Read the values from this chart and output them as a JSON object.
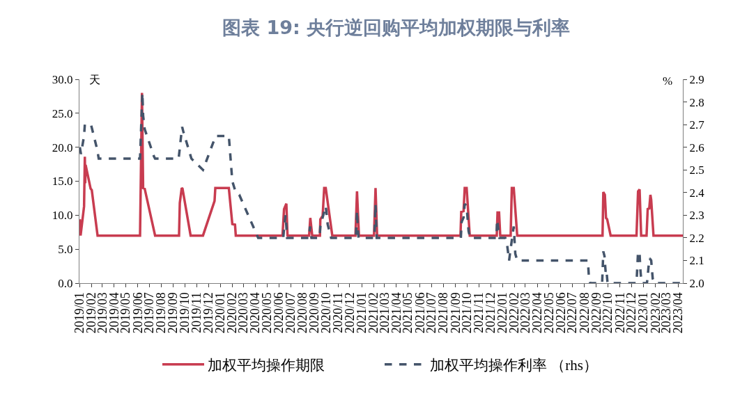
{
  "chart_data": {
    "type": "line",
    "title": "图表 19: 央行逆回购平均加权期限与利率",
    "ylabel": "天",
    "y2label": "%",
    "legend": "bottom",
    "xlim": [
      "2019-01-01",
      "2023-04-13"
    ],
    "xticks": [
      {
        "value": "2019-01",
        "label": "2019/01"
      },
      {
        "value": "2019-02",
        "label": "2019/02"
      },
      {
        "value": "2019-03",
        "label": "2019/03"
      },
      {
        "value": "2019-04",
        "label": "2019/04"
      },
      {
        "value": "2019-05",
        "label": "2019/05"
      },
      {
        "value": "2019-06",
        "label": "2019/06"
      },
      {
        "value": "2019-07",
        "label": "2019/07"
      },
      {
        "value": "2019-08",
        "label": "2019/08"
      },
      {
        "value": "2019-09",
        "label": "2019/09"
      },
      {
        "value": "2019-10",
        "label": "2019/10"
      },
      {
        "value": "2019-11",
        "label": "2019/11"
      },
      {
        "value": "2019-12",
        "label": "2019/12"
      },
      {
        "value": "2020-01",
        "label": "2020/01"
      },
      {
        "value": "2020-02",
        "label": "2020/02"
      },
      {
        "value": "2020-03",
        "label": "2020/03"
      },
      {
        "value": "2020-04",
        "label": "2020/04"
      },
      {
        "value": "2020-05",
        "label": "2020/05"
      },
      {
        "value": "2020-06",
        "label": "2020/06"
      },
      {
        "value": "2020-07",
        "label": "2020/07"
      },
      {
        "value": "2020-08",
        "label": "2020/08"
      },
      {
        "value": "2020-09",
        "label": "2020/09"
      },
      {
        "value": "2020-10",
        "label": "2020/10"
      },
      {
        "value": "2020-11",
        "label": "2020/11"
      },
      {
        "value": "2020-12",
        "label": "2020/12"
      },
      {
        "value": "2021-01",
        "label": "2021/01"
      },
      {
        "value": "2021-02",
        "label": "2021/02"
      },
      {
        "value": "2021-03",
        "label": "2021/03"
      },
      {
        "value": "2021-04",
        "label": "2021/04"
      },
      {
        "value": "2021-05",
        "label": "2021/05"
      },
      {
        "value": "2021-06",
        "label": "2021/06"
      },
      {
        "value": "2021-07",
        "label": "2021/07"
      },
      {
        "value": "2021-08",
        "label": "2021/08"
      },
      {
        "value": "2021-09",
        "label": "2021/09"
      },
      {
        "value": "2021-10",
        "label": "2021/10"
      },
      {
        "value": "2021-11",
        "label": "2021/11"
      },
      {
        "value": "2021-12",
        "label": "2021/12"
      },
      {
        "value": "2022-01",
        "label": "2022/01"
      },
      {
        "value": "2022-02",
        "label": "2022/02"
      },
      {
        "value": "2022-03",
        "label": "2022/03"
      },
      {
        "value": "2022-04",
        "label": "2022/04"
      },
      {
        "value": "2022-05",
        "label": "2022/05"
      },
      {
        "value": "2022-06",
        "label": "2022/06"
      },
      {
        "value": "2022-07",
        "label": "2022/07"
      },
      {
        "value": "2022-08",
        "label": "2022/08"
      },
      {
        "value": "2022-09",
        "label": "2022/09"
      },
      {
        "value": "2022-10",
        "label": "2022/10"
      },
      {
        "value": "2022-11",
        "label": "2022/11"
      },
      {
        "value": "2022-12",
        "label": "2022/12"
      },
      {
        "value": "2023-01",
        "label": "2023/01"
      },
      {
        "value": "2023-02",
        "label": "2023/02"
      },
      {
        "value": "2023-03",
        "label": "2023/03"
      },
      {
        "value": "2023-04",
        "label": "2023/04"
      }
    ],
    "ylim": [
      0,
      30
    ],
    "yticks": [
      {
        "value": 0,
        "label": "0.0"
      },
      {
        "value": 5,
        "label": "5.0"
      },
      {
        "value": 10,
        "label": "10.0"
      },
      {
        "value": 15,
        "label": "15.0"
      },
      {
        "value": 20,
        "label": "20.0"
      },
      {
        "value": 25,
        "label": "25.0"
      },
      {
        "value": 30,
        "label": "30.0"
      }
    ],
    "y2lim": [
      2.0,
      2.9
    ],
    "y2ticks": [
      {
        "value": 2,
        "label": "2.0"
      },
      2.1,
      2.2,
      2.3,
      2.4,
      2.5,
      2.6,
      2.7,
      2.8,
      2.9
    ],
    "series": [
      {
        "name": "加权平均操作期限",
        "color": "#c83c50",
        "line_style": "solid",
        "x": [
          "2019-01-02",
          "2019-01-04",
          "2019-01-13",
          "2019-01-15",
          "2019-01-16",
          "2019-01-17",
          "2019-01-30",
          "2019-02-02",
          "2019-02-17",
          "2019-06-07",
          "2019-06-12",
          "2019-06-15",
          "2019-06-19",
          "2019-07-16",
          "2019-09-16",
          "2019-09-18",
          "2019-09-23",
          "2019-09-25",
          "2019-10-16",
          "2019-11-17",
          "2019-12-17",
          "2019-12-19",
          "2020-01-23",
          "2020-02-01",
          "2020-02-08",
          "2020-02-10",
          "2020-06-10",
          "2020-06-14",
          "2020-06-20",
          "2020-06-23",
          "2020-08-18",
          "2020-08-21",
          "2020-08-26",
          "2020-09-15",
          "2020-09-16",
          "2020-09-22",
          "2020-09-26",
          "2020-09-30",
          "2020-10-17",
          "2020-12-16",
          "2020-12-20",
          "2020-12-25",
          "2021-02-02",
          "2021-02-06",
          "2021-02-10",
          "2021-09-14",
          "2021-09-16",
          "2021-09-22",
          "2021-09-25",
          "2021-09-30",
          "2021-10-08",
          "2021-12-17",
          "2021-12-19",
          "2021-12-23",
          "2021-12-26",
          "2022-01-22",
          "2022-01-25",
          "2022-01-30",
          "2022-02-08",
          "2022-09-17",
          "2022-09-19",
          "2022-09-23",
          "2022-09-26",
          "2022-09-29",
          "2022-10-08",
          "2022-12-14",
          "2022-12-18",
          "2022-12-22",
          "2022-12-26",
          "2023-01-09",
          "2023-01-12",
          "2023-01-16",
          "2023-01-19",
          "2023-01-21",
          "2023-01-27",
          "2023-04-13"
        ],
        "values": [
          9.4,
          7.0,
          11.3,
          18.6,
          14.7,
          17.4,
          13.9,
          13.7,
          7.0,
          7.0,
          28.0,
          14.0,
          13.9,
          7.0,
          7.0,
          11.8,
          14.0,
          13.9,
          7.0,
          7.0,
          12.1,
          14.0,
          14.0,
          8.7,
          8.6,
          7.0,
          7.0,
          10.9,
          11.7,
          7.0,
          7.0,
          9.6,
          7.0,
          7.0,
          9.4,
          9.9,
          14.0,
          14.0,
          7.0,
          7.0,
          13.5,
          7.0,
          7.0,
          14.0,
          7.0,
          7.0,
          10.5,
          10.6,
          14.0,
          14.0,
          7.0,
          7.0,
          10.4,
          10.4,
          7.0,
          7.0,
          14.0,
          14.0,
          7.0,
          7.0,
          13.4,
          13.0,
          9.6,
          9.4,
          7.0,
          7.0,
          13.5,
          13.8,
          7.0,
          7.0,
          10.9,
          11.0,
          13.0,
          12.3,
          7.0,
          7.0
        ]
      },
      {
        "name": "加权平均操作利率 （rhs）",
        "color": "#44546a",
        "line_style": "dashed",
        "axis": "y2",
        "x": [
          "2019-01-02",
          "2019-01-05",
          "2019-01-13",
          "2019-01-15",
          "2019-01-31",
          "2019-02-16",
          "2019-02-20",
          "2019-06-07",
          "2019-06-13",
          "2019-06-15",
          "2019-06-19",
          "2019-07-13",
          "2019-07-16",
          "2019-09-15",
          "2019-09-24",
          "2019-09-27",
          "2019-10-18",
          "2019-11-17",
          "2019-12-20",
          "2020-01-23",
          "2020-02-01",
          "2020-02-10",
          "2020-02-19",
          "2020-04-08",
          "2020-06-12",
          "2020-06-15",
          "2020-06-18",
          "2020-06-22",
          "2020-08-18",
          "2020-08-20",
          "2020-08-24",
          "2020-09-14",
          "2020-09-16",
          "2020-09-22",
          "2020-09-30",
          "2020-10-05",
          "2020-10-14",
          "2020-12-17",
          "2020-12-20",
          "2020-12-22",
          "2020-12-24",
          "2021-02-03",
          "2021-02-06",
          "2021-02-09",
          "2021-09-15",
          "2021-09-17",
          "2021-09-22",
          "2021-09-25",
          "2021-09-30",
          "2021-10-05",
          "2021-10-09",
          "2021-12-16",
          "2021-12-18",
          "2021-12-24",
          "2022-01-08",
          "2022-01-12",
          "2022-01-18",
          "2022-01-21",
          "2022-01-30",
          "2022-02-03",
          "2022-02-08",
          "2022-08-10",
          "2022-08-13",
          "2022-08-16",
          "2022-09-16",
          "2022-09-19",
          "2022-09-22",
          "2022-09-25",
          "2022-09-27",
          "2022-09-30",
          "2022-12-14",
          "2022-12-18",
          "2022-12-22",
          "2022-12-24",
          "2022-12-26",
          "2022-12-28",
          "2023-01-10",
          "2023-01-12",
          "2023-01-14",
          "2023-01-17",
          "2023-01-21",
          "2023-01-25",
          "2023-01-30",
          "2023-04-13"
        ],
        "values": [
          2.6,
          2.57,
          2.65,
          2.7,
          2.7,
          2.59,
          2.55,
          2.55,
          2.84,
          2.74,
          2.68,
          2.56,
          2.55,
          2.55,
          2.69,
          2.67,
          2.55,
          2.5,
          2.65,
          2.65,
          2.45,
          2.4,
          2.39,
          2.2,
          2.2,
          2.26,
          2.3,
          2.2,
          2.2,
          2.25,
          2.2,
          2.2,
          2.25,
          2.29,
          2.34,
          2.26,
          2.2,
          2.2,
          2.32,
          2.24,
          2.2,
          2.2,
          2.35,
          2.2,
          2.2,
          2.27,
          2.29,
          2.35,
          2.34,
          2.23,
          2.2,
          2.2,
          2.28,
          2.2,
          2.2,
          2.18,
          2.1,
          2.14,
          2.25,
          2.13,
          2.1,
          2.1,
          2.02,
          2.0,
          2.0,
          2.14,
          2.12,
          2.05,
          2.06,
          2.0,
          2.0,
          2.14,
          2.13,
          2.06,
          2.02,
          2.0,
          2.0,
          2.03,
          2.07,
          2.11,
          2.1,
          2.02,
          2.0,
          2.0
        ]
      }
    ]
  }
}
